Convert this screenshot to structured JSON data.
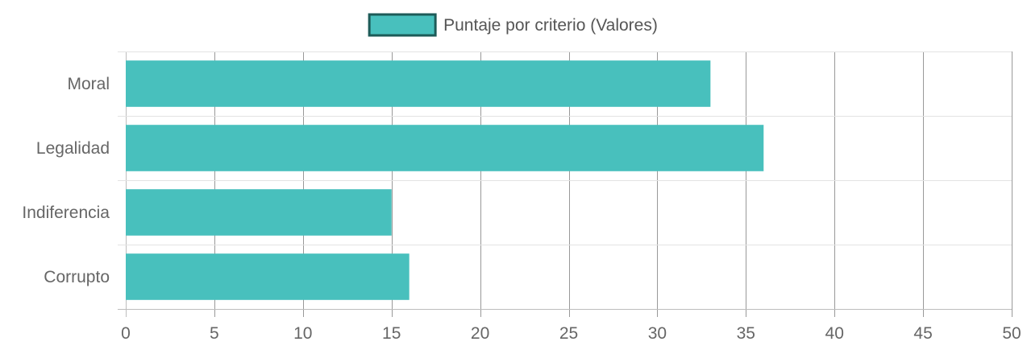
{
  "chart_data": {
    "type": "bar",
    "orientation": "horizontal",
    "categories": [
      "Moral",
      "Legalidad",
      "Indiferencia",
      "Corrupto"
    ],
    "series": [
      {
        "name": "Puntaje por criterio (Valores)",
        "values": [
          33,
          36,
          15,
          16
        ],
        "color": "#48c0bd",
        "border_color": "#1d5b58"
      }
    ],
    "xlim": [
      0,
      50
    ],
    "x_ticks": [
      0,
      5,
      10,
      15,
      20,
      25,
      30,
      35,
      40,
      45,
      50
    ],
    "grid": true,
    "legend_position": "top-center",
    "title": "",
    "xlabel": "",
    "ylabel": ""
  }
}
